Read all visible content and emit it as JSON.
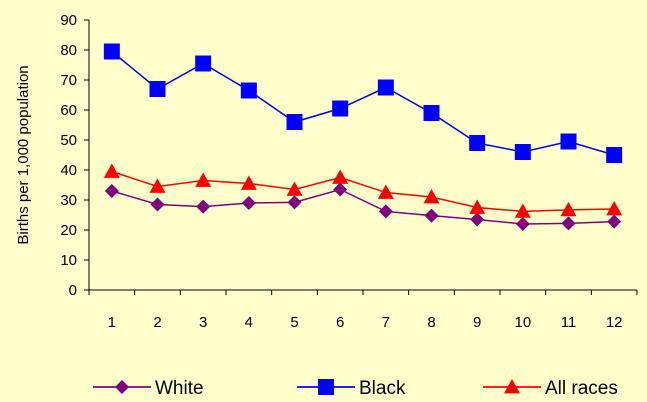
{
  "chart_data": {
    "type": "line",
    "title": "",
    "xlabel": "",
    "ylabel": "Births per 1,000 population",
    "x": [
      1,
      2,
      3,
      4,
      5,
      6,
      7,
      8,
      9,
      10,
      11,
      12
    ],
    "ylim": [
      0,
      90
    ],
    "yticks": [
      0,
      10,
      20,
      30,
      40,
      50,
      60,
      70,
      80,
      90
    ],
    "grid": false,
    "legend_position": "bottom",
    "series": [
      {
        "name": "White",
        "color": "#800080",
        "marker": "diamond",
        "values": [
          33,
          28.5,
          27.8,
          29,
          29.2,
          33.5,
          26.2,
          24.8,
          23.5,
          22,
          22.2,
          22.8
        ]
      },
      {
        "name": "Black",
        "color": "#0000ff",
        "marker": "square",
        "values": [
          79.5,
          67,
          75.5,
          66.5,
          56,
          60.5,
          67.5,
          59,
          49,
          46,
          49.5,
          45
        ]
      },
      {
        "name": "All races",
        "color": "#ff0000",
        "marker": "triangle",
        "values": [
          39.5,
          34.5,
          36.5,
          35.5,
          33.5,
          37.5,
          32.5,
          31,
          27.5,
          26.2,
          26.7,
          27
        ]
      }
    ]
  }
}
